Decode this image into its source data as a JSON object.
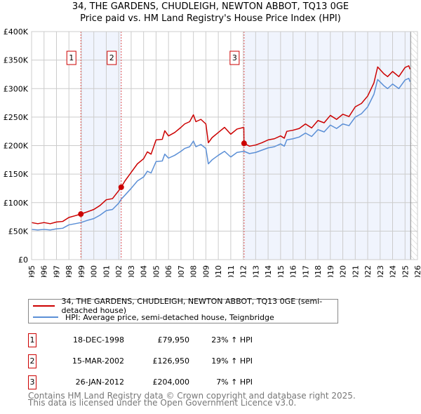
{
  "chart_data": {
    "type": "line",
    "title": "34, THE GARDENS, CHUDLEIGH, NEWTON ABBOT, TQ13 0GE",
    "subtitle": "Price paid vs. HM Land Registry's House Price Index (HPI)",
    "xlim": [
      1995,
      2026
    ],
    "ylim": [
      0,
      400000
    ],
    "y_ticks": [
      {
        "v": 0,
        "label": "£0"
      },
      {
        "v": 50000,
        "label": "£50K"
      },
      {
        "v": 100000,
        "label": "£100K"
      },
      {
        "v": 150000,
        "label": "£150K"
      },
      {
        "v": 200000,
        "label": "£200K"
      },
      {
        "v": 250000,
        "label": "£250K"
      },
      {
        "v": 300000,
        "label": "£300K"
      },
      {
        "v": 350000,
        "label": "£350K"
      },
      {
        "v": 400000,
        "label": "£400K"
      }
    ],
    "x_ticks": [
      "1995",
      "1996",
      "1997",
      "1998",
      "1999",
      "2000",
      "2001",
      "2002",
      "2003",
      "2004",
      "2005",
      "2006",
      "2007",
      "2008",
      "2009",
      "2010",
      "2011",
      "2012",
      "2013",
      "2014",
      "2015",
      "2016",
      "2017",
      "2018",
      "2019",
      "2020",
      "2021",
      "2022",
      "2023",
      "2024",
      "2025",
      "2026"
    ],
    "grid": true,
    "legend_placement": "below",
    "x": [
      1995,
      1995.5,
      1996,
      1996.5,
      1997,
      1997.5,
      1998,
      1998.5,
      1998.96,
      1999.5,
      2000,
      2000.5,
      2001,
      2001.5,
      2002,
      2002.2,
      2002.5,
      2003,
      2003.5,
      2004,
      2004.3,
      2004.6,
      2005,
      2005.5,
      2005.7,
      2006,
      2006.5,
      2007,
      2007.3,
      2007.7,
      2008,
      2008.2,
      2008.6,
      2009,
      2009.2,
      2009.5,
      2010,
      2010.5,
      2011,
      2011.5,
      2012.05,
      2012.07,
      2012.5,
      2013,
      2013.5,
      2014,
      2014.5,
      2015,
      2015.3,
      2015.5,
      2016,
      2016.5,
      2017,
      2017.5,
      2018,
      2018.5,
      2019,
      2019.5,
      2020,
      2020.5,
      2021,
      2021.5,
      2022,
      2022.5,
      2022.8,
      2023.3,
      2023.6,
      2024,
      2024.5,
      2025,
      2025.3,
      2025.4
    ],
    "series": [
      {
        "name": "34, THE GARDENS, CHUDLEIGH, NEWTON ABBOT, TQ13 0GE (semi-detached house)",
        "color": "#cc0000",
        "unit": "K",
        "values": [
          65,
          63,
          65,
          63,
          66,
          67,
          74,
          77,
          80,
          84,
          88,
          95,
          105,
          107,
          121,
          127,
          138,
          153,
          168,
          177,
          189,
          185,
          210,
          211,
          226,
          217,
          223,
          232,
          238,
          242,
          254,
          242,
          246,
          238,
          205,
          214,
          223,
          232,
          220,
          229,
          232,
          204,
          199,
          201,
          205,
          210,
          212,
          217,
          213,
          225,
          227,
          230,
          238,
          231,
          244,
          240,
          253,
          246,
          255,
          251,
          268,
          274,
          287,
          310,
          338,
          326,
          321,
          330,
          321,
          337,
          340,
          334
        ]
      },
      {
        "name": "HPI: Average price, semi-detached house, Teignbridge",
        "color": "#5b8fd6",
        "unit": "K",
        "values": [
          53,
          52,
          53,
          52,
          54,
          55,
          61,
          63,
          65,
          69,
          72,
          78,
          86,
          88,
          99,
          106,
          113,
          125,
          138,
          145,
          155,
          152,
          172,
          173,
          185,
          178,
          183,
          190,
          195,
          198,
          208,
          198,
          202,
          195,
          168,
          175,
          183,
          190,
          180,
          188,
          190,
          190,
          186,
          188,
          192,
          196,
          198,
          203,
          199,
          210,
          212,
          215,
          222,
          216,
          228,
          224,
          236,
          230,
          238,
          235,
          250,
          256,
          268,
          290,
          316,
          305,
          300,
          308,
          300,
          315,
          318,
          312
        ]
      }
    ],
    "sales": [
      {
        "id": "1",
        "x": 1998.96,
        "price": 79950,
        "date": "18-DEC-1998",
        "price_label": "£79,950",
        "hpi": "23% ↑ HPI"
      },
      {
        "id": "2",
        "x": 2002.2,
        "price": 126950,
        "date": "15-MAR-2002",
        "price_label": "£126,950",
        "hpi": "19% ↑ HPI"
      },
      {
        "id": "3",
        "x": 2012.07,
        "price": 204000,
        "date": "26-JAN-2012",
        "price_label": "£204,000",
        "hpi": "7% ↑ HPI"
      }
    ],
    "data_end": 2025.45
  },
  "footer": {
    "line1": "Contains HM Land Registry data © Crown copyright and database right 2025.",
    "line2": "This data is licensed under the Open Government Licence v3.0."
  }
}
